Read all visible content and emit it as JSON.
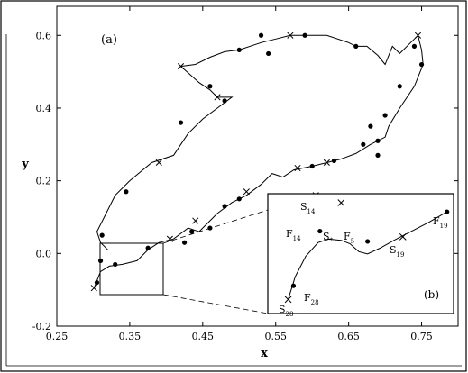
{
  "chart_data": [
    {
      "type": "scatter",
      "panel_label": "(a)",
      "xlabel": "x",
      "ylabel": "y",
      "xlim": [
        0.25,
        0.8
      ],
      "ylim": [
        -0.2,
        0.68
      ],
      "xticks": [
        "0.25",
        "0.35",
        "0.45",
        "0.55",
        "0.65",
        "0.75"
      ],
      "yticks": [
        "-0.2",
        "0.0",
        "0.2",
        "0.4",
        "0.6"
      ],
      "curve": [
        [
          0.301,
          -0.095
        ],
        [
          0.31,
          -0.05
        ],
        [
          0.322,
          -0.035
        ],
        [
          0.34,
          -0.03
        ],
        [
          0.36,
          -0.02
        ],
        [
          0.375,
          0.01
        ],
        [
          0.39,
          0.03
        ],
        [
          0.41,
          0.04
        ],
        [
          0.43,
          0.07
        ],
        [
          0.445,
          0.06
        ],
        [
          0.455,
          0.08
        ],
        [
          0.47,
          0.11
        ],
        [
          0.49,
          0.14
        ],
        [
          0.51,
          0.16
        ],
        [
          0.53,
          0.19
        ],
        [
          0.545,
          0.22
        ],
        [
          0.56,
          0.21
        ],
        [
          0.575,
          0.23
        ],
        [
          0.6,
          0.24
        ],
        [
          0.62,
          0.25
        ],
        [
          0.64,
          0.26
        ],
        [
          0.66,
          0.275
        ],
        [
          0.68,
          0.3
        ],
        [
          0.7,
          0.32
        ],
        [
          0.705,
          0.35
        ],
        [
          0.72,
          0.4
        ],
        [
          0.74,
          0.46
        ],
        [
          0.752,
          0.52
        ],
        [
          0.75,
          0.56
        ],
        [
          0.745,
          0.6
        ],
        [
          0.735,
          0.58
        ],
        [
          0.72,
          0.55
        ],
        [
          0.71,
          0.57
        ],
        [
          0.7,
          0.52
        ],
        [
          0.69,
          0.545
        ],
        [
          0.675,
          0.57
        ],
        [
          0.66,
          0.57
        ],
        [
          0.65,
          0.58
        ],
        [
          0.62,
          0.6
        ],
        [
          0.6,
          0.6
        ],
        [
          0.57,
          0.6
        ],
        [
          0.55,
          0.59
        ],
        [
          0.53,
          0.58
        ],
        [
          0.5,
          0.56
        ],
        [
          0.48,
          0.555
        ],
        [
          0.46,
          0.54
        ],
        [
          0.44,
          0.52
        ],
        [
          0.42,
          0.515
        ],
        [
          0.445,
          0.47
        ],
        [
          0.46,
          0.45
        ],
        [
          0.47,
          0.43
        ],
        [
          0.49,
          0.43
        ],
        [
          0.47,
          0.4
        ],
        [
          0.45,
          0.37
        ],
        [
          0.43,
          0.33
        ],
        [
          0.42,
          0.3
        ],
        [
          0.41,
          0.27
        ],
        [
          0.38,
          0.25
        ],
        [
          0.35,
          0.2
        ],
        [
          0.33,
          0.16
        ],
        [
          0.315,
          0.1
        ],
        [
          0.305,
          0.06
        ],
        [
          0.31,
          0.03
        ],
        [
          0.32,
          0.01
        ]
      ],
      "crosses": [
        [
          0.301,
          -0.095
        ],
        [
          0.42,
          0.515
        ],
        [
          0.47,
          0.43
        ],
        [
          0.745,
          0.6
        ],
        [
          0.605,
          0.16
        ],
        [
          0.57,
          0.6
        ],
        [
          0.39,
          0.25
        ],
        [
          0.405,
          0.04
        ],
        [
          0.44,
          0.09
        ],
        [
          0.51,
          0.17
        ],
        [
          0.58,
          0.235
        ],
        [
          0.62,
          0.25
        ]
      ],
      "dots": [
        [
          0.305,
          -0.08
        ],
        [
          0.31,
          -0.02
        ],
        [
          0.312,
          0.05
        ],
        [
          0.33,
          -0.03
        ],
        [
          0.345,
          0.17
        ],
        [
          0.375,
          0.015
        ],
        [
          0.42,
          0.36
        ],
        [
          0.425,
          0.03
        ],
        [
          0.435,
          0.06
        ],
        [
          0.46,
          0.46
        ],
        [
          0.46,
          0.07
        ],
        [
          0.48,
          0.42
        ],
        [
          0.48,
          0.13
        ],
        [
          0.5,
          0.56
        ],
        [
          0.5,
          0.15
        ],
        [
          0.53,
          0.6
        ],
        [
          0.54,
          0.55
        ],
        [
          0.59,
          0.6
        ],
        [
          0.6,
          0.24
        ],
        [
          0.63,
          0.255
        ],
        [
          0.66,
          0.57
        ],
        [
          0.67,
          0.3
        ],
        [
          0.68,
          0.35
        ],
        [
          0.69,
          0.31
        ],
        [
          0.7,
          0.38
        ],
        [
          0.72,
          0.46
        ],
        [
          0.74,
          0.57
        ],
        [
          0.75,
          0.52
        ],
        [
          0.69,
          0.27
        ]
      ]
    },
    {
      "type": "scatter",
      "panel_label": "(b)",
      "labels": [
        {
          "main": "S",
          "sub": "14"
        },
        {
          "main": "F",
          "sub": "14"
        },
        {
          "main": "S",
          "sub": "*"
        },
        {
          "main": "F",
          "sub": "5"
        },
        {
          "main": "F",
          "sub": "19"
        },
        {
          "main": "S",
          "sub": "19"
        },
        {
          "main": "F",
          "sub": "28"
        },
        {
          "main": "S",
          "sub": "28"
        }
      ],
      "curve": [
        [
          0.1,
          0.1
        ],
        [
          0.14,
          0.3
        ],
        [
          0.2,
          0.48
        ],
        [
          0.27,
          0.6
        ],
        [
          0.33,
          0.63
        ],
        [
          0.4,
          0.62
        ],
        [
          0.45,
          0.59
        ],
        [
          0.5,
          0.52
        ],
        [
          0.55,
          0.5
        ],
        [
          0.62,
          0.55
        ],
        [
          0.7,
          0.62
        ],
        [
          0.8,
          0.7
        ],
        [
          0.9,
          0.78
        ],
        [
          1.0,
          0.87
        ]
      ],
      "crosses": [
        [
          0.1,
          0.1
        ],
        [
          0.4,
          0.95
        ],
        [
          0.75,
          0.65
        ]
      ],
      "dots": [
        [
          0.13,
          0.22
        ],
        [
          0.28,
          0.7
        ],
        [
          0.55,
          0.61
        ],
        [
          1.0,
          0.87
        ]
      ]
    }
  ]
}
